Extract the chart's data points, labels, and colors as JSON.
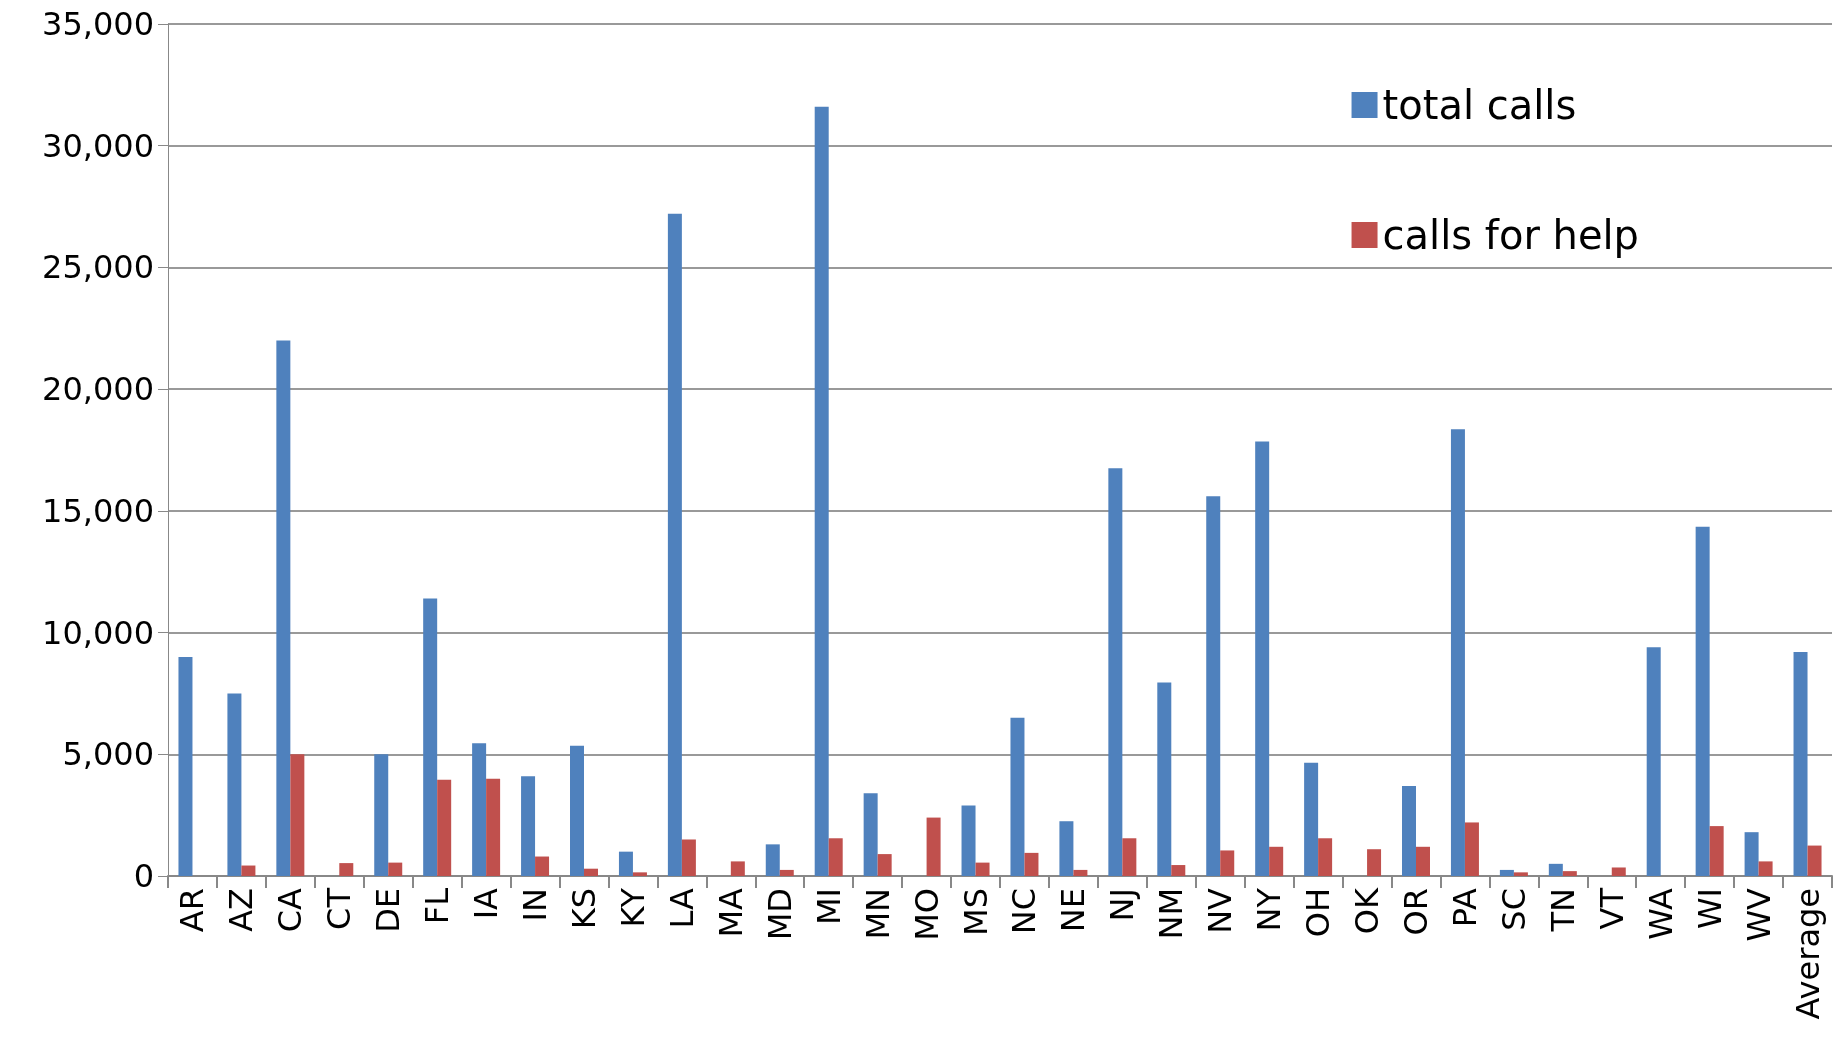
{
  "chart_data": {
    "type": "bar",
    "categories": [
      "AR",
      "AZ",
      "CA",
      "CT",
      "DE",
      "FL",
      "IA",
      "IN",
      "KS",
      "KY",
      "LA",
      "MA",
      "MD",
      "MI",
      "MN",
      "MO",
      "MS",
      "NC",
      "NE",
      "NJ",
      "NM",
      "NV",
      "NY",
      "OH",
      "OK",
      "OR",
      "PA",
      "SC",
      "TN",
      "VT",
      "WA",
      "WI",
      "WV",
      "Average"
    ],
    "series": [
      {
        "name": "total calls",
        "color": "#4f81bd",
        "values": [
          9000,
          7500,
          22000,
          null,
          5000,
          11400,
          5450,
          4100,
          5350,
          1000,
          27200,
          null,
          1300,
          31600,
          3400,
          null,
          2900,
          6500,
          2250,
          16750,
          7950,
          15600,
          17850,
          4650,
          null,
          3700,
          18350,
          250,
          500,
          null,
          9400,
          14350,
          1800,
          9200
        ]
      },
      {
        "name": "calls for help",
        "color": "#c0504d",
        "values": [
          null,
          430,
          5000,
          530,
          550,
          3950,
          4000,
          800,
          300,
          150,
          1500,
          600,
          250,
          1550,
          900,
          2400,
          550,
          950,
          250,
          1550,
          450,
          1050,
          1200,
          1550,
          1100,
          1200,
          2200,
          150,
          200,
          350,
          null,
          2050,
          600,
          1250
        ]
      }
    ],
    "ylim": [
      0,
      35000
    ],
    "yticks": [
      0,
      {
        "value": 5000,
        "label": "5,000"
      },
      {
        "value": 10000,
        "label": "10,000"
      },
      {
        "value": 15000,
        "label": "15,000"
      },
      {
        "value": 20000,
        "label": "20,000"
      },
      {
        "value": 25000,
        "label": "25,000"
      },
      {
        "value": 30000,
        "label": "30,000"
      },
      {
        "value": 35000,
        "label": "35,000"
      }
    ],
    "grid": "y",
    "legend": "top right"
  }
}
